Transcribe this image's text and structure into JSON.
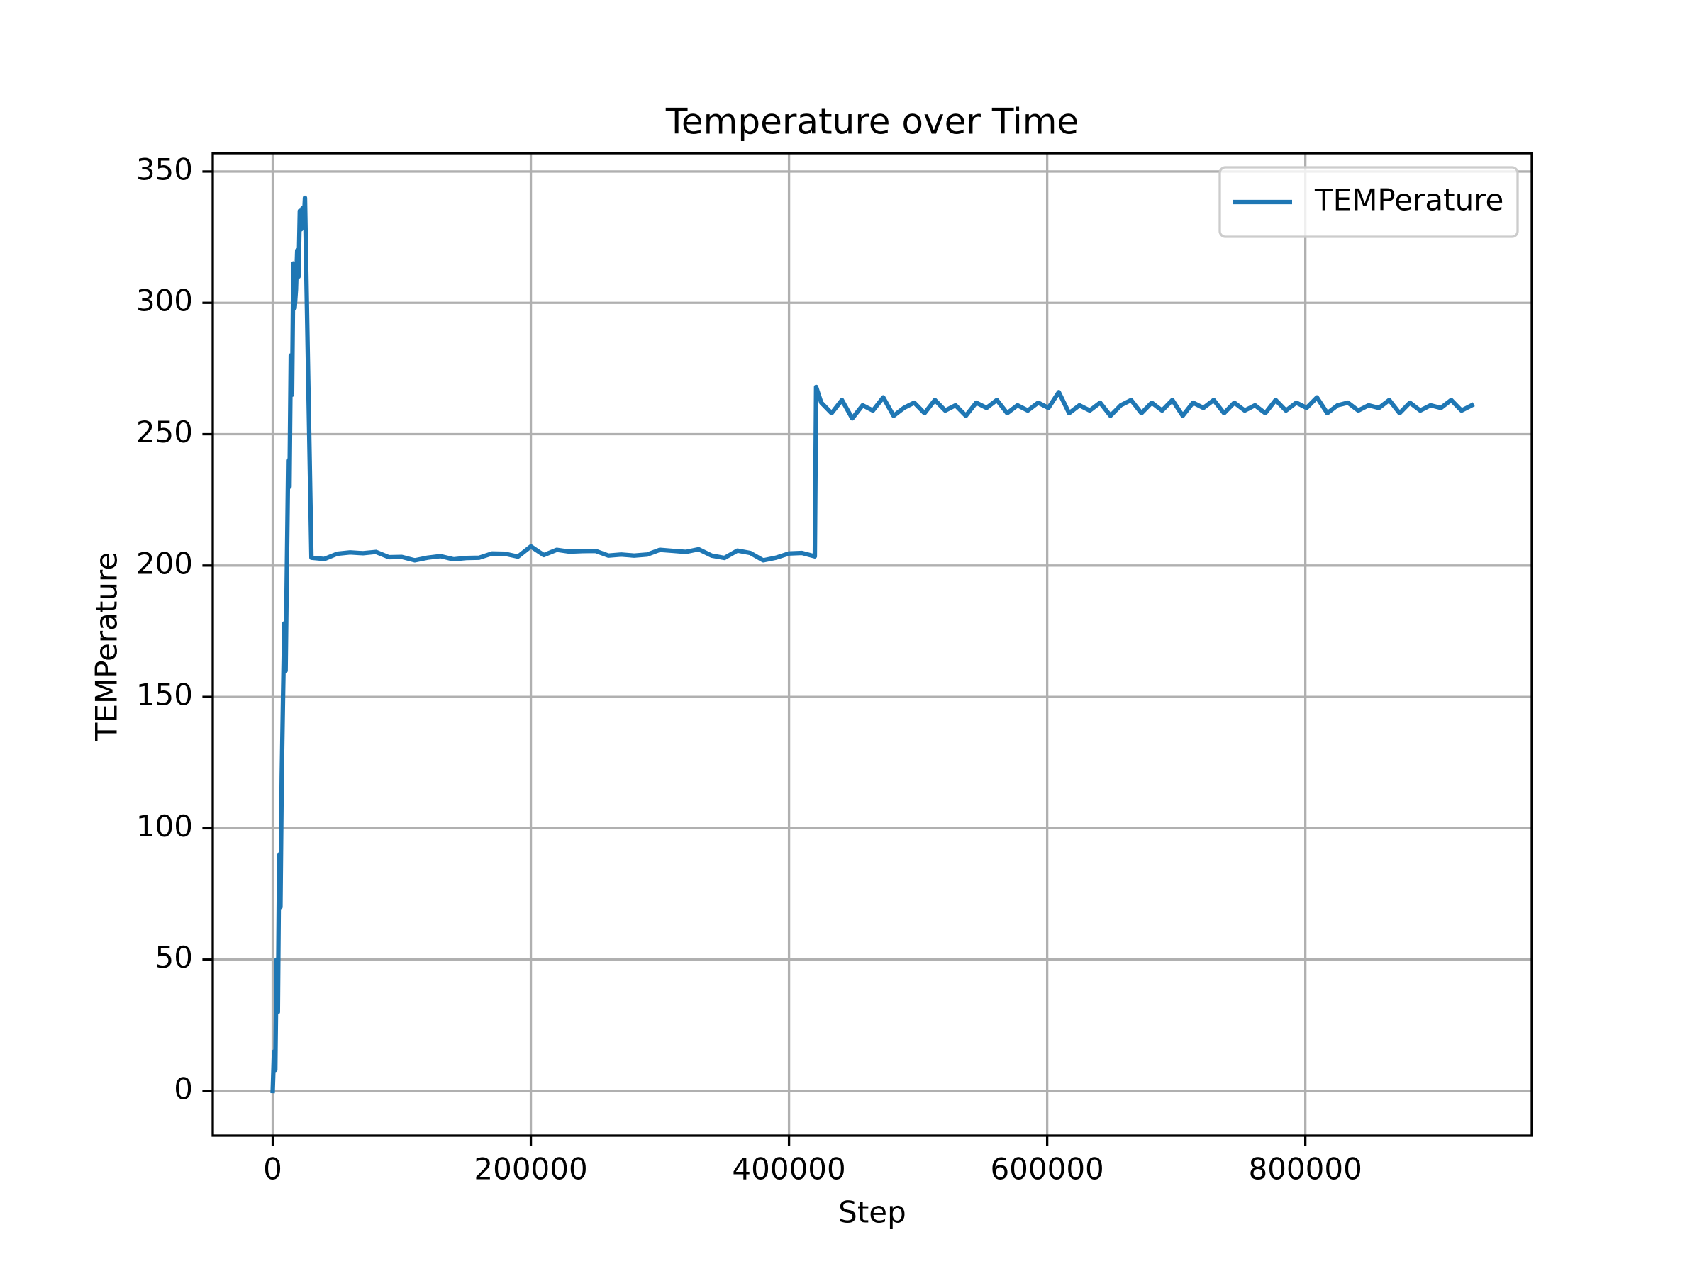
{
  "chart_data": {
    "type": "line",
    "title": "Temperature over Time",
    "xlabel": "Step",
    "ylabel": "TEMPerature",
    "x": [
      0,
      1000,
      2000,
      3000,
      4000,
      5000,
      6000,
      7000,
      8000,
      9000,
      10000,
      11000,
      12000,
      13000,
      14000,
      15000,
      16000,
      17000,
      18000,
      19000,
      20000,
      21000,
      22000,
      23000,
      24000,
      25000,
      30000,
      40000,
      50000,
      60000,
      70000,
      80000,
      90000,
      100000,
      110000,
      120000,
      130000,
      140000,
      150000,
      160000,
      170000,
      180000,
      190000,
      200000,
      210000,
      220000,
      230000,
      240000,
      250000,
      260000,
      270000,
      280000,
      290000,
      300000,
      310000,
      320000,
      330000,
      340000,
      350000,
      360000,
      370000,
      380000,
      390000,
      400000,
      410000,
      420000,
      421000,
      425000,
      433000,
      441000,
      449000,
      457000,
      465000,
      473000,
      481000,
      489000,
      497000,
      505000,
      513000,
      521000,
      529000,
      537000,
      545000,
      553000,
      561000,
      569000,
      577000,
      585000,
      593000,
      601000,
      609000,
      617000,
      625000,
      633000,
      641000,
      649000,
      657000,
      665000,
      673000,
      681000,
      689000,
      697000,
      705000,
      713000,
      721000,
      729000,
      737000,
      745000,
      753000,
      761000,
      769000,
      777000,
      785000,
      793000,
      801000,
      809000,
      817000,
      825000,
      833000,
      841000,
      849000,
      857000,
      865000,
      873000,
      881000,
      889000,
      897000,
      905000,
      913000,
      921000,
      929000
    ],
    "series": [
      {
        "name": "TEMPerature",
        "color": "#1f77b4",
        "values": [
          0,
          15,
          8,
          50,
          30,
          90,
          70,
          120,
          150,
          178,
          160,
          200,
          240,
          230,
          280,
          265,
          315,
          298,
          305,
          320,
          310,
          335,
          328,
          336,
          330,
          340,
          203,
          202.5,
          204.5,
          205,
          204.7,
          205.2,
          203.2,
          203.3,
          202,
          203,
          203.6,
          202.4,
          202.9,
          203,
          204.6,
          204.5,
          203.4,
          207.3,
          204,
          206,
          205.3,
          205.5,
          205.6,
          203.8,
          204.2,
          203.8,
          204.2,
          206,
          205.6,
          205.2,
          206.2,
          203.8,
          202.9,
          205.7,
          204.8,
          202,
          203,
          204.6,
          204.8,
          203.5,
          268,
          262,
          258,
          263,
          256,
          261,
          259,
          264,
          257,
          260,
          262,
          258,
          263,
          259,
          261,
          257,
          262,
          260,
          263,
          258,
          261,
          259,
          262,
          260,
          266,
          258,
          261,
          259,
          262,
          257,
          261,
          263,
          258,
          262,
          259,
          263,
          257,
          262,
          260,
          263,
          258,
          262,
          259,
          261,
          258,
          263,
          259,
          262,
          260,
          264,
          258,
          261,
          262,
          259,
          261,
          260,
          263,
          258,
          262,
          259,
          261,
          260,
          263,
          259,
          261
        ]
      }
    ],
    "xlim": [
      -46450,
      975450
    ],
    "ylim": [
      -17,
      357
    ],
    "xticks": [
      0,
      200000,
      400000,
      600000,
      800000
    ],
    "yticks": [
      0,
      50,
      100,
      150,
      200,
      250,
      300,
      350
    ],
    "grid": true,
    "legend": "upper right"
  }
}
